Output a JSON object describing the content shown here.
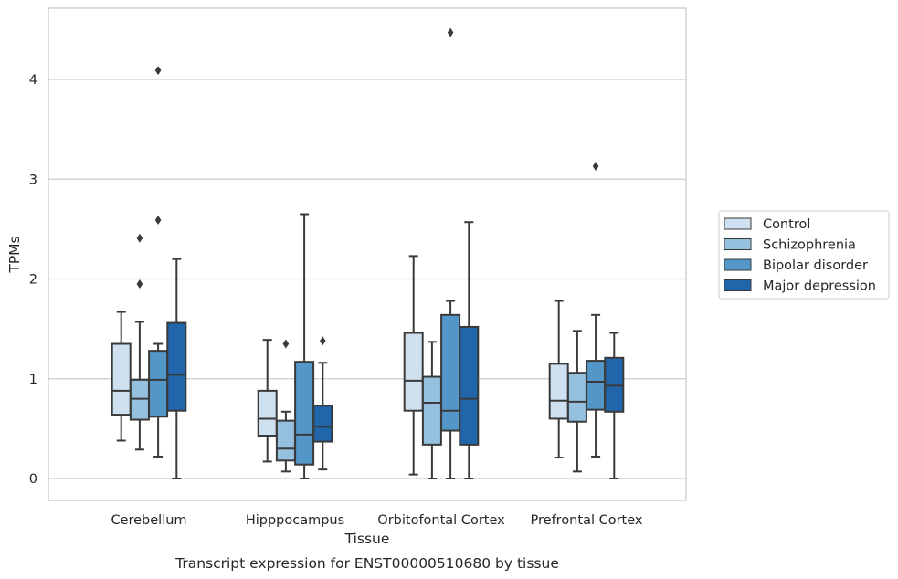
{
  "chart_data": {
    "type": "box",
    "title": "",
    "caption": "Transcript expression for ENST00000510680 by tissue",
    "xlabel": "Tissue",
    "ylabel": "TPMs",
    "ylim": [
      -0.22,
      4.7
    ],
    "yticks": [
      0,
      1,
      2,
      3,
      4
    ],
    "grid": "horizontal",
    "legend_position": "right",
    "categories": [
      "Cerebellum",
      "Hipppocampus",
      "Orbitofontal Cortex",
      "Prefrontal Cortex"
    ],
    "series": [
      {
        "name": "Control",
        "color": "#cfe0f1",
        "boxes": [
          {
            "whislo": 0.38,
            "q1": 0.64,
            "med": 0.88,
            "q3": 1.35,
            "whishi": 1.67,
            "fliers": []
          },
          {
            "whislo": 0.17,
            "q1": 0.43,
            "med": 0.6,
            "q3": 0.88,
            "whishi": 1.39,
            "fliers": []
          },
          {
            "whislo": 0.04,
            "q1": 0.68,
            "med": 0.98,
            "q3": 1.46,
            "whishi": 2.23,
            "fliers": []
          },
          {
            "whislo": 0.21,
            "q1": 0.6,
            "med": 0.78,
            "q3": 1.15,
            "whishi": 1.78,
            "fliers": []
          }
        ]
      },
      {
        "name": "Schizophrenia",
        "color": "#95c1de",
        "boxes": [
          {
            "whislo": 0.29,
            "q1": 0.59,
            "med": 0.8,
            "q3": 0.99,
            "whishi": 1.57,
            "fliers": [
              1.95,
              2.41
            ]
          },
          {
            "whislo": 0.07,
            "q1": 0.18,
            "med": 0.3,
            "q3": 0.58,
            "whishi": 0.67,
            "fliers": [
              1.35
            ]
          },
          {
            "whislo": 0.0,
            "q1": 0.34,
            "med": 0.76,
            "q3": 1.02,
            "whishi": 1.37,
            "fliers": []
          },
          {
            "whislo": 0.07,
            "q1": 0.57,
            "med": 0.77,
            "q3": 1.06,
            "whishi": 1.48,
            "fliers": []
          }
        ]
      },
      {
        "name": "Bipolar disorder",
        "color": "#5397c8",
        "boxes": [
          {
            "whislo": 0.22,
            "q1": 0.62,
            "med": 0.99,
            "q3": 1.28,
            "whishi": 1.35,
            "fliers": [
              2.59,
              4.09
            ]
          },
          {
            "whislo": 0.0,
            "q1": 0.14,
            "med": 0.44,
            "q3": 1.17,
            "whishi": 2.65,
            "fliers": []
          },
          {
            "whislo": 0.0,
            "q1": 0.48,
            "med": 0.68,
            "q3": 1.64,
            "whishi": 1.78,
            "fliers": [
              4.47
            ]
          },
          {
            "whislo": 0.22,
            "q1": 0.69,
            "med": 0.97,
            "q3": 1.18,
            "whishi": 1.64,
            "fliers": [
              3.13
            ]
          }
        ]
      },
      {
        "name": "Major depression",
        "color": "#2166ab",
        "boxes": [
          {
            "whislo": 0.0,
            "q1": 0.68,
            "med": 1.04,
            "q3": 1.56,
            "whishi": 2.2,
            "fliers": []
          },
          {
            "whislo": 0.09,
            "q1": 0.37,
            "med": 0.52,
            "q3": 0.73,
            "whishi": 1.16,
            "fliers": [
              1.38
            ]
          },
          {
            "whislo": 0.0,
            "q1": 0.34,
            "med": 0.8,
            "q3": 1.52,
            "whishi": 2.57,
            "fliers": []
          },
          {
            "whislo": 0.0,
            "q1": 0.67,
            "med": 0.93,
            "q3": 1.21,
            "whishi": 1.46,
            "fliers": []
          }
        ]
      }
    ]
  }
}
